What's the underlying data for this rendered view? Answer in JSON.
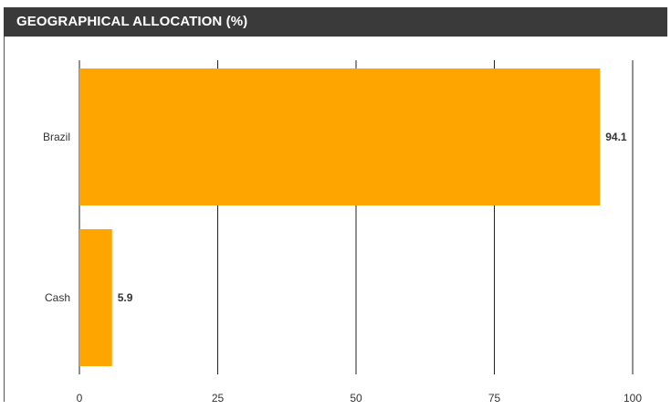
{
  "header": {
    "title": "GEOGRAPHICAL ALLOCATION (%)"
  },
  "colors": {
    "bar": "#FFA500",
    "header_bg": "#3a3a3a",
    "grid": "#222222"
  },
  "chart_data": {
    "type": "bar",
    "orientation": "horizontal",
    "title": "GEOGRAPHICAL ALLOCATION (%)",
    "categories": [
      "Brazil",
      "Cash"
    ],
    "values": [
      94.1,
      5.9
    ],
    "value_labels": [
      "94.1",
      "5.9"
    ],
    "xlim": [
      0,
      100
    ],
    "x_ticks": [
      0,
      25,
      50,
      75,
      100
    ],
    "x_tick_labels": [
      "0",
      "25",
      "50",
      "75",
      "100"
    ],
    "grid": true,
    "legend": "none"
  }
}
